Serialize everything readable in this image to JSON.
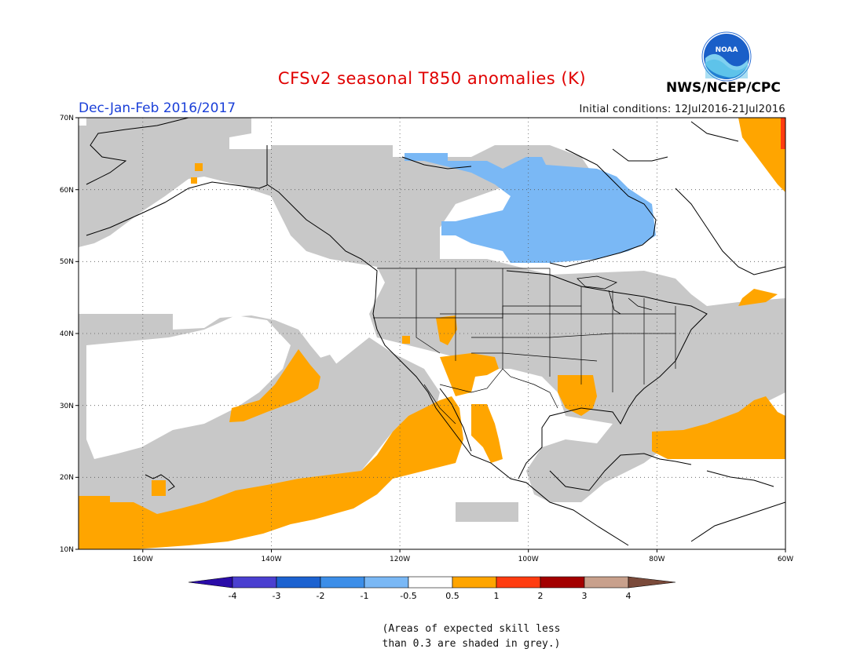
{
  "title": "CFSv2 seasonal T850 anomalies (K)",
  "season": "Dec-Jan-Feb 2016/2017",
  "initial_conditions": "Initial conditions: 12Jul2016-21Jul2016",
  "agency": "NWS/NCEP/CPC",
  "logo_text": "NOAA",
  "lat_labels": [
    "70N",
    "60N",
    "50N",
    "40N",
    "30N",
    "20N",
    "10N"
  ],
  "lon_labels": [
    "160W",
    "140W",
    "120W",
    "100W",
    "80W",
    "60W"
  ],
  "colorbar_labels": [
    "-4",
    "-3",
    "-2",
    "-1",
    "-0.5",
    "0.5",
    "1",
    "2",
    "3",
    "4"
  ],
  "colors": {
    "skill_grey": "#c8c8c8",
    "warm_1": "#ffa500",
    "cool_1": "#7ab8f5",
    "title_red": "#e00000",
    "season_blue": "#1a3fd8"
  },
  "colorbar_colors": [
    "#2a0ca8",
    "#4a3fd0",
    "#1c62d0",
    "#3c8ee8",
    "#7ab8f5",
    "#ffffff",
    "#ffa500",
    "#ff3c10",
    "#a30000",
    "#c8a08c",
    "#7a4a3a"
  ],
  "note_lines": [
    "(Areas of expected skill less",
    "than 0.3 are shaded in grey.)"
  ]
}
